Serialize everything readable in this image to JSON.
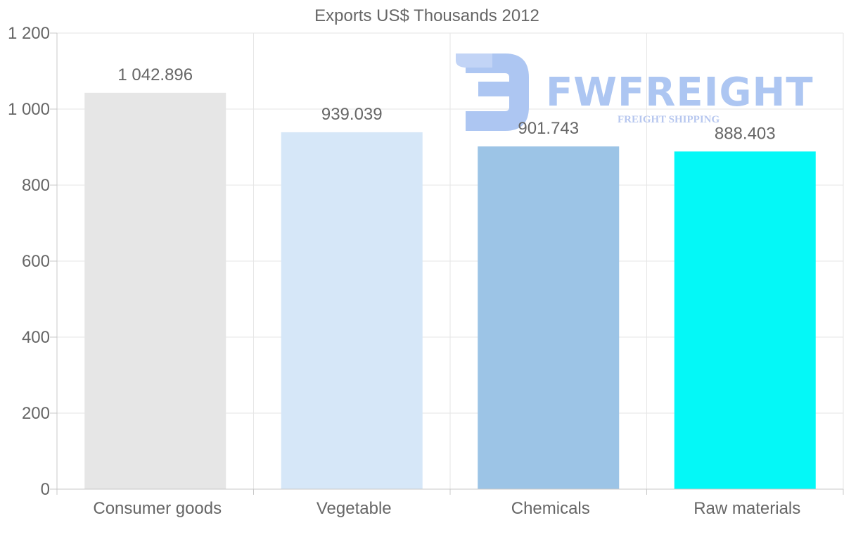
{
  "chart_data": {
    "type": "bar",
    "title": "Exports US$ Thousands 2012",
    "categories": [
      "Consumer goods",
      "Vegetable",
      "Chemicals",
      "Raw materials"
    ],
    "values": [
      1042.896,
      939.039,
      901.743,
      888.403
    ],
    "value_labels": [
      "1 042.896",
      "939.039",
      "901.743",
      "888.403"
    ],
    "colors": [
      "#e6e6e6",
      "#d6e7f8",
      "#9cc4e6",
      "#04f8f7"
    ],
    "ylim": [
      0,
      1200
    ],
    "yticks": [
      0,
      200,
      400,
      600,
      800,
      1000,
      1200
    ],
    "ytick_labels": [
      "0",
      "200",
      "400",
      "600",
      "800",
      "1 000",
      "1 200"
    ],
    "xlabel": "",
    "ylabel": "",
    "grid": true
  },
  "watermark": {
    "brand": "FWFREIGHT",
    "tagline": "FREIGHT SHIPPING",
    "color": "#adc6f2"
  }
}
